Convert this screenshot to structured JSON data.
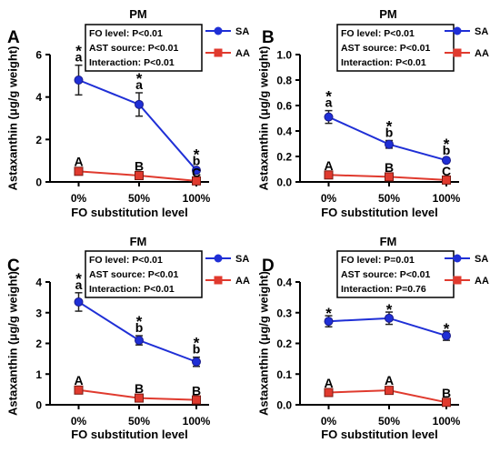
{
  "figure": {
    "y_axis_label": "Astaxanthin (μg/g weight)",
    "x_axis_label": "FO substitution level",
    "categories": [
      "0%",
      "50%",
      "100%"
    ],
    "legend": [
      {
        "name": "SA",
        "color": "#1f2fd6",
        "marker": "circle"
      },
      {
        "name": "AA",
        "color": "#e03a2e",
        "marker": "square"
      }
    ]
  },
  "chart_data": [
    {
      "type": "line",
      "panel_letter": "A",
      "title": "PM",
      "ylim": [
        0,
        6
      ],
      "yticks": [
        "0",
        "2",
        "4",
        "6"
      ],
      "stats": [
        "FO level: P<0.01",
        "AST source: P<0.01",
        "Interaction: P<0.01"
      ],
      "series": [
        {
          "name": "SA",
          "values": [
            4.8,
            3.65,
            0.55
          ],
          "errors": [
            0.7,
            0.55,
            0.08
          ],
          "annotations": [
            [
              "*",
              "a"
            ],
            [
              "*",
              "a"
            ],
            [
              "*",
              "b"
            ]
          ]
        },
        {
          "name": "AA",
          "values": [
            0.5,
            0.3,
            0.05
          ],
          "errors": [
            0.08,
            0.06,
            0.02
          ],
          "annotations": [
            [
              "A"
            ],
            [
              "B"
            ],
            [
              "C"
            ]
          ]
        }
      ]
    },
    {
      "type": "line",
      "panel_letter": "B",
      "title": "PM",
      "ylim": [
        0,
        1.0
      ],
      "yticks": [
        "0.0",
        "0.2",
        "0.4",
        "0.6",
        "0.8",
        "1.0"
      ],
      "stats": [
        "FO level: P<0.01",
        "AST source: P<0.01",
        "Interaction: P<0.01"
      ],
      "series": [
        {
          "name": "SA",
          "values": [
            0.51,
            0.295,
            0.17
          ],
          "errors": [
            0.05,
            0.03,
            0.015
          ],
          "annotations": [
            [
              "*",
              "a"
            ],
            [
              "*",
              "b"
            ],
            [
              "*",
              "b"
            ]
          ]
        },
        {
          "name": "AA",
          "values": [
            0.055,
            0.04,
            0.015
          ],
          "errors": [
            0.01,
            0.01,
            0.005
          ],
          "annotations": [
            [
              "A"
            ],
            [
              "B"
            ],
            [
              "C"
            ]
          ]
        }
      ]
    },
    {
      "type": "line",
      "panel_letter": "C",
      "title": "FM",
      "ylim": [
        0,
        4
      ],
      "yticks": [
        "0",
        "1",
        "2",
        "3",
        "4"
      ],
      "stats": [
        "FO level: P<0.01",
        "AST source: P<0.01",
        "Interaction: P<0.01"
      ],
      "series": [
        {
          "name": "SA",
          "values": [
            3.35,
            2.1,
            1.4
          ],
          "errors": [
            0.3,
            0.15,
            0.15
          ],
          "annotations": [
            [
              "*",
              "a"
            ],
            [
              "*",
              "b"
            ],
            [
              "*",
              "b"
            ]
          ]
        },
        {
          "name": "AA",
          "values": [
            0.48,
            0.22,
            0.16
          ],
          "errors": [
            0.05,
            0.04,
            0.04
          ],
          "annotations": [
            [
              "A"
            ],
            [
              "B"
            ],
            [
              "B"
            ]
          ]
        }
      ]
    },
    {
      "type": "line",
      "panel_letter": "D",
      "title": "FM",
      "ylim": [
        0,
        0.4
      ],
      "yticks": [
        "0.0",
        "0.1",
        "0.2",
        "0.3",
        "0.4"
      ],
      "stats": [
        "FO level: P=0.01",
        "AST source: P<0.01",
        "Interaction: P=0.76"
      ],
      "series": [
        {
          "name": "SA",
          "values": [
            0.272,
            0.282,
            0.225
          ],
          "errors": [
            0.018,
            0.02,
            0.015
          ],
          "annotations": [
            [
              "*"
            ],
            [
              "*"
            ],
            [
              "*"
            ]
          ]
        },
        {
          "name": "AA",
          "values": [
            0.04,
            0.047,
            0.008
          ],
          "errors": [
            0.005,
            0.006,
            0.004
          ],
          "annotations": [
            [
              "A"
            ],
            [
              "A"
            ],
            [
              "B"
            ]
          ]
        }
      ]
    }
  ]
}
